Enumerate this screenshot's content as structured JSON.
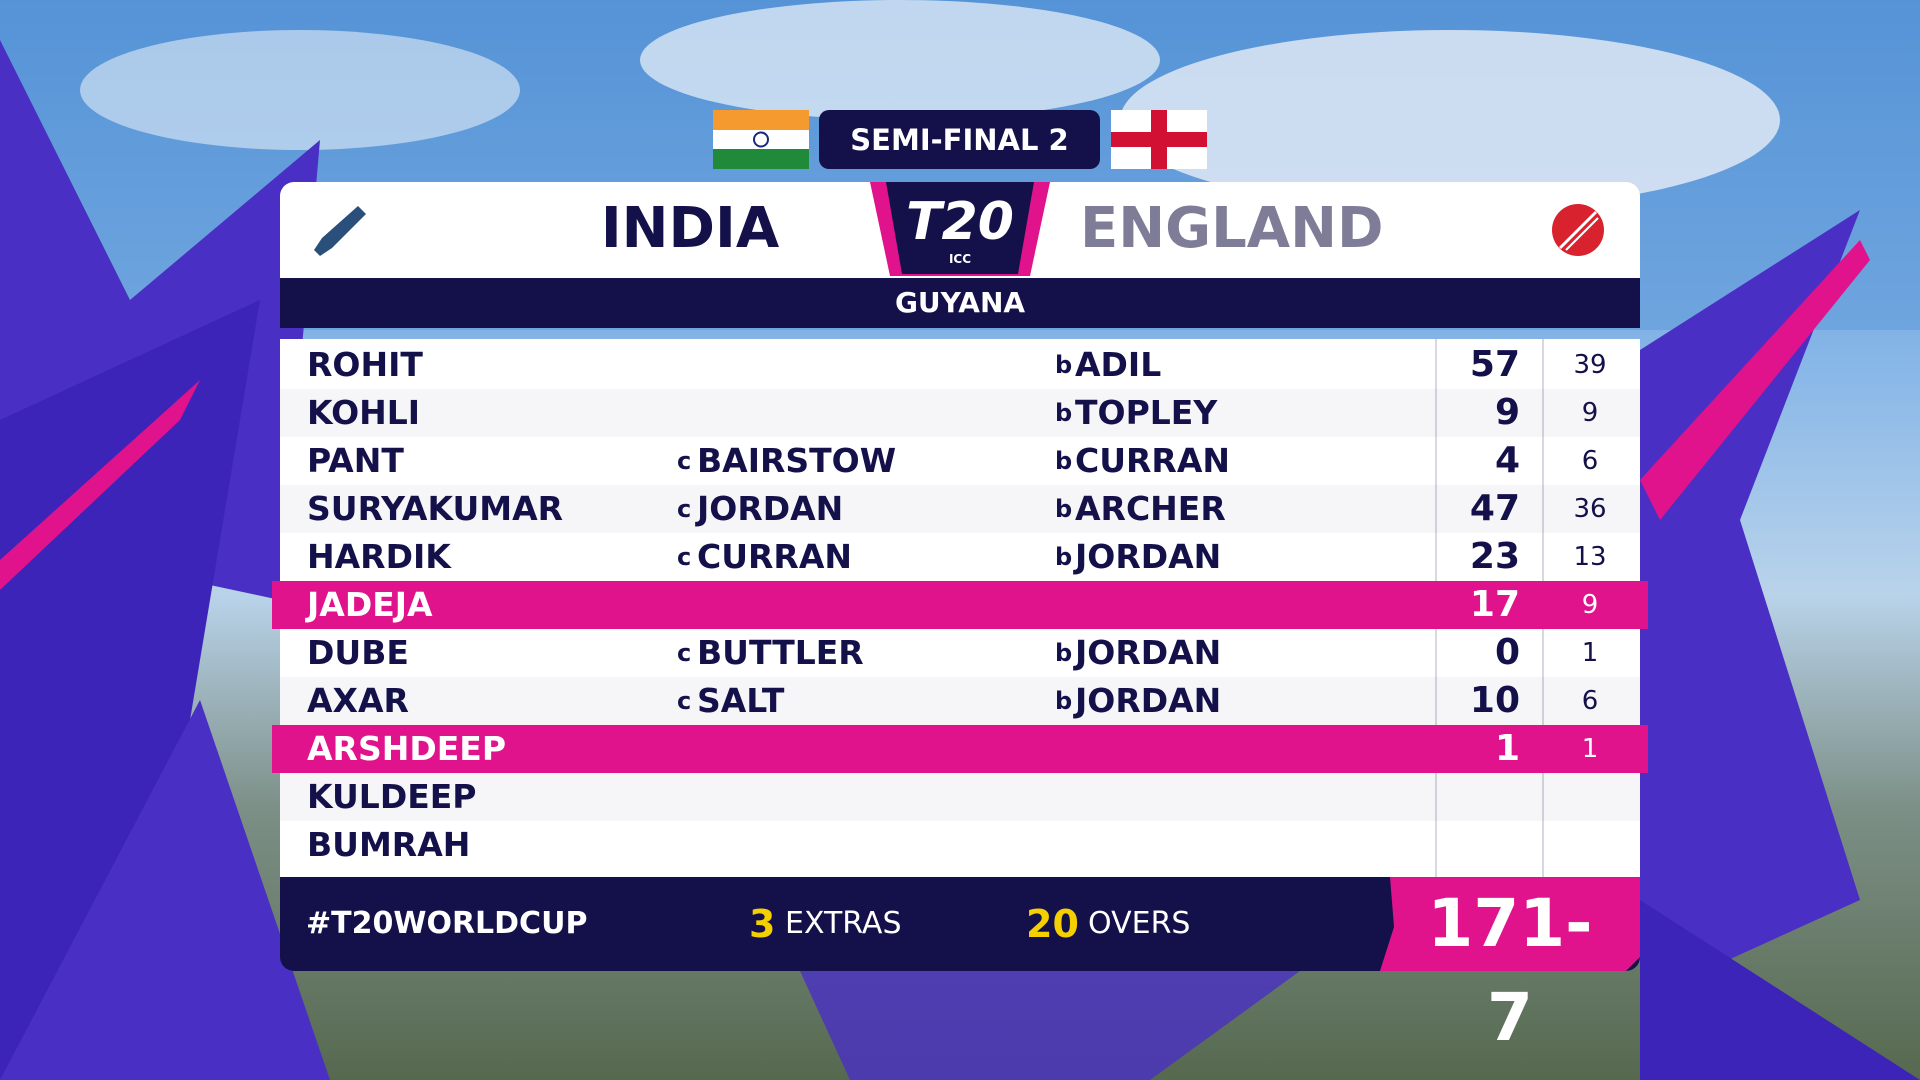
{
  "header": {
    "stage": "SEMI-FINAL 2",
    "batting_team": "INDIA",
    "bowling_team": "ENGLAND",
    "logo": "T20",
    "logo_sub": "ICC",
    "venue": "GUYANA"
  },
  "rows": [
    {
      "name": "ROHIT",
      "bowled": {
        "prefix": "b",
        "name": "ADIL"
      },
      "runs": "57",
      "balls": "39"
    },
    {
      "name": "KOHLI",
      "bowled": {
        "prefix": "b",
        "name": "TOPLEY"
      },
      "runs": "9",
      "balls": "9"
    },
    {
      "name": "PANT",
      "caught": {
        "prefix": "c",
        "name": "BAIRSTOW"
      },
      "bowled": {
        "prefix": "b",
        "name": "CURRAN"
      },
      "runs": "4",
      "balls": "6"
    },
    {
      "name": "SURYAKUMAR",
      "caught": {
        "prefix": "c",
        "name": "JORDAN"
      },
      "bowled": {
        "prefix": "b",
        "name": "ARCHER"
      },
      "runs": "47",
      "balls": "36"
    },
    {
      "name": "HARDIK",
      "caught": {
        "prefix": "c",
        "name": "CURRAN"
      },
      "bowled": {
        "prefix": "b",
        "name": "JORDAN"
      },
      "runs": "23",
      "balls": "13"
    },
    {
      "name": "JADEJA",
      "runs": "17",
      "balls": "9",
      "not_out": true
    },
    {
      "name": "DUBE",
      "caught": {
        "prefix": "c",
        "name": "BUTTLER"
      },
      "bowled": {
        "prefix": "b",
        "name": "JORDAN"
      },
      "runs": "0",
      "balls": "1"
    },
    {
      "name": "AXAR",
      "caught": {
        "prefix": "c",
        "name": "SALT"
      },
      "bowled": {
        "prefix": "b",
        "name": "JORDAN"
      },
      "runs": "10",
      "balls": "6"
    },
    {
      "name": "ARSHDEEP",
      "runs": "1",
      "balls": "1",
      "not_out": true
    },
    {
      "name": "KULDEEP"
    },
    {
      "name": "BUMRAH"
    }
  ],
  "footer": {
    "hashtag": "#T20WORLDCUP",
    "extras": {
      "value": "3",
      "label": "EXTRAS"
    },
    "overs": {
      "value": "20",
      "label": "OVERS"
    },
    "total": "171-7"
  }
}
